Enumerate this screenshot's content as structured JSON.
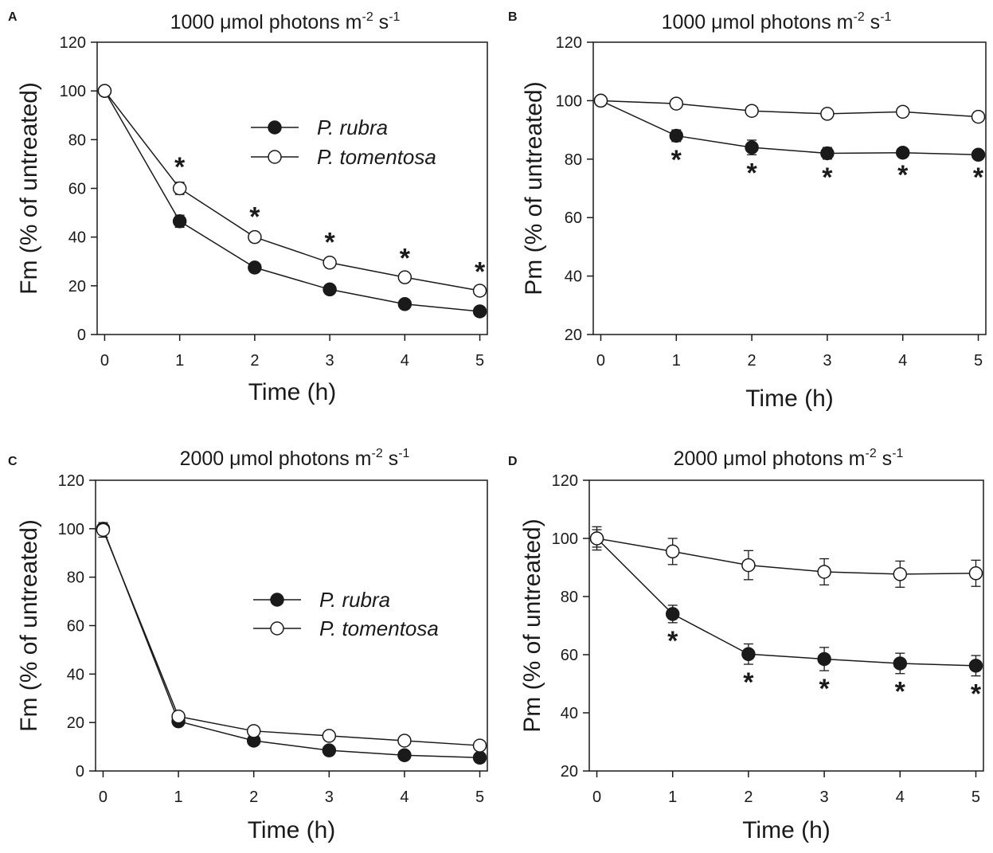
{
  "figure": {
    "series_names": [
      "P. rubra",
      "P. tomentosa"
    ],
    "series_styles": {
      "P. rubra": "filled-circle",
      "P. tomentosa": "open-circle"
    },
    "colors": {
      "ink": "#1a1a1a",
      "open_fill": "#ffffff"
    }
  },
  "chart_data": [
    {
      "panel": "A",
      "type": "line",
      "title": "1000  μmol photons m",
      "title_units": {
        "m_exp": "-2",
        "s": " s",
        "s_exp": "-1"
      },
      "xlabel": "Time (h)",
      "ylabel": "Fm (% of untreated)",
      "x": [
        0,
        1,
        2,
        3,
        4,
        5
      ],
      "xlim": [
        -0.1,
        5.1
      ],
      "ylim": [
        0,
        120
      ],
      "yticks": [
        0,
        20,
        40,
        60,
        80,
        100,
        120
      ],
      "series": [
        {
          "name": "P. rubra",
          "values": [
            100,
            46.5,
            27.5,
            18.5,
            12.5,
            9.5
          ],
          "errors": [
            0,
            2.5,
            1.5,
            1.5,
            1,
            1
          ]
        },
        {
          "name": "P. tomentosa",
          "values": [
            100,
            60,
            40,
            29.5,
            23.5,
            18
          ],
          "errors": [
            0,
            2.5,
            2,
            2,
            1.5,
            1.5
          ]
        }
      ],
      "significance": {
        "symbol": "*",
        "x": [
          1,
          2,
          3,
          4,
          5
        ],
        "position": "above"
      },
      "legend": "top-center"
    },
    {
      "panel": "B",
      "type": "line",
      "title": "1000  μmol photons m",
      "title_units": {
        "m_exp": "-2",
        "s": " s",
        "s_exp": "-1"
      },
      "xlabel": "Time (h)",
      "ylabel": "Pm (% of untreated)",
      "x": [
        0,
        1,
        2,
        3,
        4,
        5
      ],
      "xlim": [
        -0.1,
        5.1
      ],
      "ylim": [
        20,
        120
      ],
      "yticks": [
        20,
        40,
        60,
        80,
        100,
        120
      ],
      "series": [
        {
          "name": "P. rubra",
          "values": [
            100,
            88,
            84,
            82,
            82.2,
            81.5
          ],
          "errors": [
            0,
            2,
            2.5,
            2,
            1.5,
            1.5
          ]
        },
        {
          "name": "P. tomentosa",
          "values": [
            100,
            99,
            96.5,
            95.5,
            96.2,
            94.5
          ],
          "errors": [
            0,
            1,
            1,
            1,
            1,
            1
          ]
        }
      ],
      "significance": {
        "symbol": "*",
        "x": [
          1,
          2,
          3,
          4,
          5
        ],
        "position": "below"
      },
      "legend": "none"
    },
    {
      "panel": "C",
      "type": "line",
      "title": "2000  μmol photons m",
      "title_units": {
        "m_exp": "-2",
        "s": " s",
        "s_exp": "-1"
      },
      "xlabel": "Time (h)",
      "ylabel": "Fm (% of untreated)",
      "x": [
        0,
        1,
        2,
        3,
        4,
        5
      ],
      "xlim": [
        -0.1,
        5.1
      ],
      "ylim": [
        0,
        120
      ],
      "yticks": [
        0,
        20,
        40,
        60,
        80,
        100,
        120
      ],
      "series": [
        {
          "name": "P. rubra",
          "values": [
            100,
            20.5,
            12.5,
            8.5,
            6.5,
            5.5
          ],
          "errors": [
            0,
            1,
            1,
            1,
            0.8,
            0.8
          ]
        },
        {
          "name": "P. tomentosa",
          "values": [
            99.5,
            22.5,
            16.5,
            14.5,
            12.5,
            10.5
          ],
          "errors": [
            3,
            1,
            1,
            1,
            1,
            1
          ]
        }
      ],
      "significance": null,
      "legend": "center"
    },
    {
      "panel": "D",
      "type": "line",
      "title": "2000  μmol photons m",
      "title_units": {
        "m_exp": "-2",
        "s": " s",
        "s_exp": "-1"
      },
      "xlabel": "Time (h)",
      "ylabel": "Pm (% of untreated)",
      "x": [
        0,
        1,
        2,
        3,
        4,
        5
      ],
      "xlim": [
        -0.1,
        5.1
      ],
      "ylim": [
        20,
        120
      ],
      "yticks": [
        20,
        40,
        60,
        80,
        100,
        120
      ],
      "series": [
        {
          "name": "P. rubra",
          "values": [
            100,
            74,
            60.2,
            58.5,
            57,
            56.2
          ],
          "errors": [
            3,
            3,
            3.5,
            4,
            3.5,
            3.5
          ]
        },
        {
          "name": "P. tomentosa",
          "values": [
            100,
            95.5,
            90.8,
            88.5,
            87.7,
            88
          ],
          "errors": [
            4,
            4.5,
            5,
            4.5,
            4.5,
            4.5
          ]
        }
      ],
      "significance": {
        "symbol": "*",
        "x": [
          1,
          2,
          3,
          4,
          5
        ],
        "position": "below"
      },
      "legend": "none"
    }
  ]
}
